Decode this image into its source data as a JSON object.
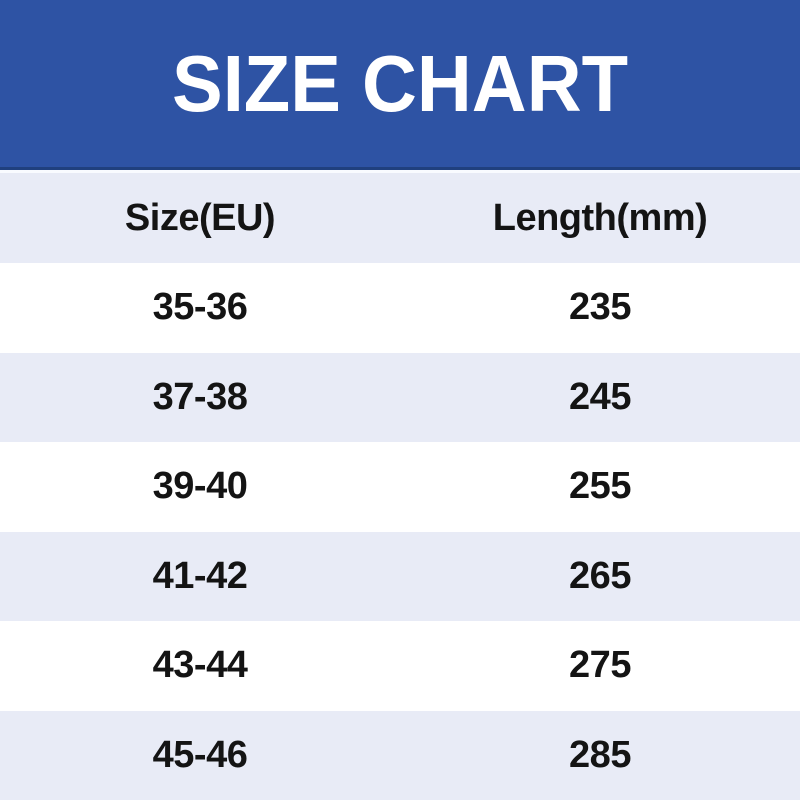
{
  "title": "SIZE CHART",
  "colors": {
    "banner_blue": "#2e53a4",
    "banner_bottom_rule": "#20407e",
    "header_top_highlight": "#f9fbff",
    "row_alt_lavender": "#e8ebf6",
    "row_white": "#ffffff",
    "title_text": "#ffffff",
    "table_text": "#141414"
  },
  "chart_data": {
    "type": "table",
    "title": "SIZE CHART",
    "columns": [
      "Size(EU)",
      "Length(mm)"
    ],
    "rows": [
      {
        "size": "35-36",
        "length": "235"
      },
      {
        "size": "37-38",
        "length": "245"
      },
      {
        "size": "39-40",
        "length": "255"
      },
      {
        "size": "41-42",
        "length": "265"
      },
      {
        "size": "43-44",
        "length": "275"
      },
      {
        "size": "45-46",
        "length": "285"
      }
    ]
  }
}
